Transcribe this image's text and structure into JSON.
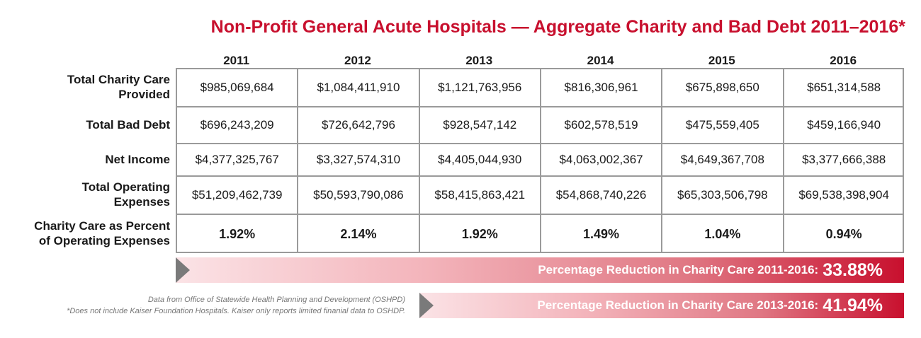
{
  "chart_data": {
    "type": "table",
    "title": "Non-Profit General Acute Hospitals — Aggregate Charity and Bad Debt 2011–2016*",
    "columns": [
      "2011",
      "2012",
      "2013",
      "2014",
      "2015",
      "2016"
    ],
    "rows": [
      {
        "label_lines": [
          "Total Charity Care",
          "Provided"
        ],
        "values": [
          "$985,069,684",
          "$1,084,411,910",
          "$1,121,763,956",
          "$816,306,961",
          "$675,898,650",
          "$651,314,588"
        ]
      },
      {
        "label_lines": [
          "Total Bad Debt"
        ],
        "values": [
          "$696,243,209",
          "$726,642,796",
          "$928,547,142",
          "$602,578,519",
          "$475,559,405",
          "$459,166,940"
        ]
      },
      {
        "label_lines": [
          "Net Income"
        ],
        "values": [
          "$4,377,325,767",
          "$3,327,574,310",
          "$4,405,044,930",
          "$4,063,002,367",
          "$4,649,367,708",
          "$3,377,666,388"
        ]
      },
      {
        "label_lines": [
          "Total Operating",
          "Expenses"
        ],
        "values": [
          "$51,209,462,739",
          "$50,593,790,086",
          "$58,415,863,421",
          "$54,868,740,226",
          "$65,303,506,798",
          "$69,538,398,904"
        ]
      },
      {
        "label_lines": [
          "Charity Care as Percent",
          "of Operating Expenses"
        ],
        "values": [
          "1.92%",
          "2.14%",
          "1.92%",
          "1.49%",
          "1.04%",
          "0.94%"
        ]
      }
    ],
    "summaries": [
      {
        "label": "Percentage Reduction in Charity Care 2011-2016:",
        "value": "33.88%"
      },
      {
        "label": "Percentage Reduction in Charity Care 2013-2016:",
        "value": "41.94%"
      }
    ],
    "footnotes": [
      "Data from Office of Statewide Health Planning and Development (OSHPD)",
      "*Does not include Kaiser Foundation Hospitals. Kaiser only reports limited finanial data to OSHDP."
    ]
  },
  "colors": {
    "accent": "#c8102e",
    "grid": "#9a9a9a",
    "arrow": "#7a7a7a"
  }
}
